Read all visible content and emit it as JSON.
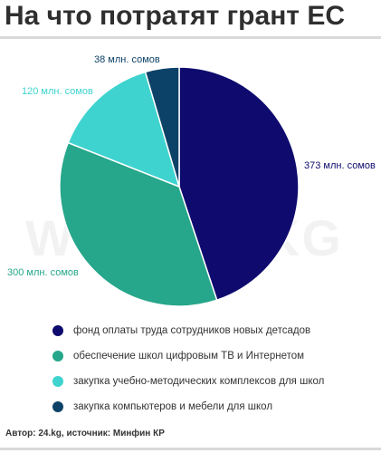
{
  "chart_data": {
    "type": "pie",
    "title": "На что потратят грант ЕС",
    "categories": [
      "фонд оплаты труда сотрудников новых детсадов",
      "обеспечение школ цифровым ТВ и Интернетом",
      "закупка учебно-методических комплексов для школ",
      "закупка компьютеров и мебели для школ"
    ],
    "values": [
      373,
      300,
      120,
      38
    ],
    "data_labels": [
      "373 млн. сомов",
      "300 млн. сомов",
      "120 млн. сомов",
      "38 млн. сомов"
    ],
    "colors": [
      "#0e0a6e",
      "#26a68b",
      "#3ed3cf",
      "#0d4268"
    ],
    "legend_position": "bottom"
  },
  "watermark": "WWW.24.KG",
  "footer": "Автор: 24.kg, источник: Минфин КР"
}
